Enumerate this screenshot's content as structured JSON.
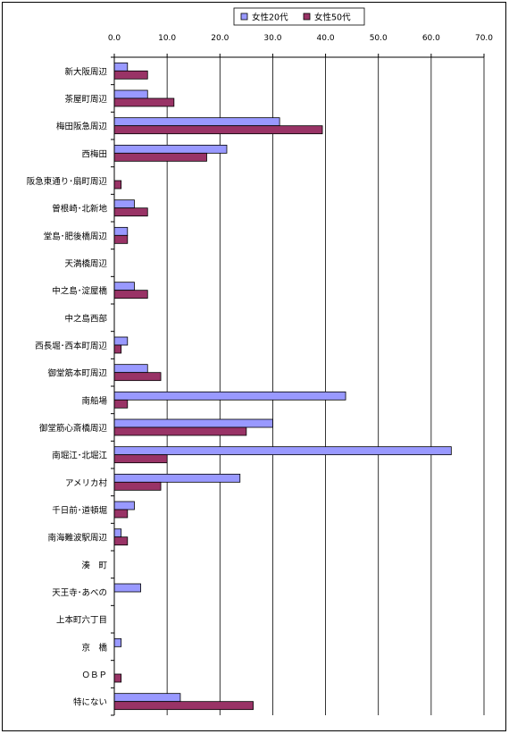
{
  "colors": {
    "s1": "#9999FF",
    "s2": "#993366"
  },
  "chart_data": {
    "type": "bar",
    "orientation": "horizontal",
    "categories": [
      "新大阪周辺",
      "茶屋町周辺",
      "梅田阪急周辺",
      "西梅田",
      "阪急東通り･扇町周辺",
      "曽根崎･北新地",
      "堂島･肥後橋周辺",
      "天満橋周辺",
      "中之島･淀屋橋",
      "中之島西部",
      "西長堀･西本町周辺",
      "御堂筋本町周辺",
      "南船場",
      "御堂筋心斎橋周辺",
      "南堀江･北堀江",
      "アメリカ村",
      "千日前･道頓堀",
      "南海難波駅周辺",
      "湊　町",
      "天王寺･あべの",
      "上本町六丁目",
      "京　橋",
      "ＯＢＰ",
      "特にない"
    ],
    "series": [
      {
        "name": "女性20代",
        "values": [
          2.5,
          6.3,
          31.3,
          21.3,
          0,
          3.8,
          2.5,
          0,
          3.8,
          0,
          2.5,
          6.3,
          43.8,
          30.0,
          63.8,
          23.8,
          3.8,
          1.3,
          0,
          5.0,
          0,
          1.3,
          0,
          12.5
        ]
      },
      {
        "name": "女性50代",
        "values": [
          6.3,
          11.3,
          39.4,
          17.5,
          1.3,
          6.3,
          2.5,
          0,
          6.3,
          0,
          1.3,
          8.8,
          2.5,
          25.0,
          10.0,
          8.8,
          2.5,
          2.5,
          0,
          0,
          0,
          0,
          1.3,
          26.3
        ]
      }
    ],
    "xlim": [
      0,
      70
    ],
    "xticks": [
      "0.0",
      "10.0",
      "20.0",
      "30.0",
      "40.0",
      "50.0",
      "60.0",
      "70.0"
    ],
    "grid": true,
    "legend": "top"
  }
}
